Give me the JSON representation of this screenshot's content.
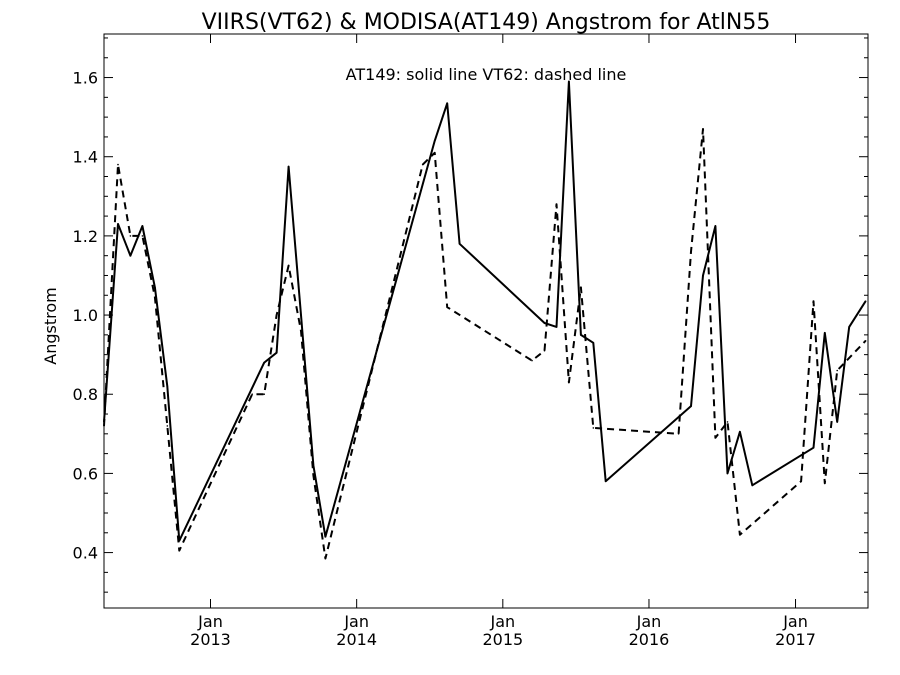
{
  "chart_data": {
    "type": "line",
    "title": "VIIRS(VT62) & MODISA(AT149)  Angstrom for AtlN55",
    "annotation": "AT149: solid line    VT62: dashed line",
    "xlabel": "",
    "ylabel": "Angstrom",
    "xlim": [
      "2012-04-10",
      "2017-07-01"
    ],
    "ylim": [
      0.26,
      1.71
    ],
    "yticks": [
      0.4,
      0.6,
      0.8,
      1.0,
      1.2,
      1.4,
      1.6
    ],
    "ytick_labels": [
      "0.4",
      "0.6",
      "0.8",
      "1.0",
      "1.2",
      "1.4",
      "1.6"
    ],
    "xticks": [
      {
        "date": "2013-01-01",
        "line1": "Jan",
        "line2": "2013"
      },
      {
        "date": "2014-01-01",
        "line1": "Jan",
        "line2": "2014"
      },
      {
        "date": "2015-01-01",
        "line1": "Jan",
        "line2": "2015"
      },
      {
        "date": "2016-01-01",
        "line1": "Jan",
        "line2": "2016"
      },
      {
        "date": "2017-01-01",
        "line1": "Jan",
        "line2": "2017"
      }
    ],
    "grid": false,
    "series": [
      {
        "name": "AT149",
        "style": "solid",
        "points": [
          [
            "2012-04-10",
            0.73
          ],
          [
            "2012-05-15",
            1.23
          ],
          [
            "2012-06-15",
            1.15
          ],
          [
            "2012-07-15",
            1.225
          ],
          [
            "2012-08-15",
            1.07
          ],
          [
            "2012-09-15",
            0.82
          ],
          [
            "2012-10-15",
            0.43
          ],
          [
            "2013-05-15",
            0.88
          ],
          [
            "2013-06-15",
            0.905
          ],
          [
            "2013-07-15",
            1.375
          ],
          [
            "2013-08-15",
            1.0
          ],
          [
            "2013-09-15",
            0.62
          ],
          [
            "2013-10-15",
            0.44
          ],
          [
            "2014-07-15",
            1.44
          ],
          [
            "2014-08-15",
            1.535
          ],
          [
            "2014-09-15",
            1.18
          ],
          [
            "2015-04-15",
            0.98
          ],
          [
            "2015-05-15",
            0.97
          ],
          [
            "2015-06-15",
            1.59
          ],
          [
            "2015-07-15",
            0.95
          ],
          [
            "2015-08-15",
            0.93
          ],
          [
            "2015-09-15",
            0.58
          ],
          [
            "2016-04-15",
            0.77
          ],
          [
            "2016-05-15",
            1.1
          ],
          [
            "2016-06-15",
            1.225
          ],
          [
            "2016-07-15",
            0.6
          ],
          [
            "2016-08-15",
            0.705
          ],
          [
            "2016-09-15",
            0.57
          ],
          [
            "2017-02-15",
            0.665
          ],
          [
            "2017-03-15",
            0.955
          ],
          [
            "2017-04-15",
            0.73
          ],
          [
            "2017-05-15",
            0.97
          ],
          [
            "2017-06-25",
            1.035
          ]
        ]
      },
      {
        "name": "VT62",
        "style": "dashed",
        "points": [
          [
            "2012-04-10",
            0.72
          ],
          [
            "2012-05-15",
            1.38
          ],
          [
            "2012-06-15",
            1.2
          ],
          [
            "2012-07-15",
            1.2
          ],
          [
            "2012-08-15",
            1.045
          ],
          [
            "2012-09-15",
            0.72
          ],
          [
            "2012-10-15",
            0.405
          ],
          [
            "2013-04-15",
            0.8
          ],
          [
            "2013-05-15",
            0.8
          ],
          [
            "2013-06-15",
            1.0
          ],
          [
            "2013-07-15",
            1.125
          ],
          [
            "2013-08-15",
            0.96
          ],
          [
            "2013-09-15",
            0.595
          ],
          [
            "2013-10-15",
            0.385
          ],
          [
            "2014-06-15",
            1.38
          ],
          [
            "2014-07-15",
            1.41
          ],
          [
            "2014-08-15",
            1.02
          ],
          [
            "2015-03-15",
            0.885
          ],
          [
            "2015-04-15",
            0.91
          ],
          [
            "2015-05-15",
            1.28
          ],
          [
            "2015-06-15",
            0.83
          ],
          [
            "2015-07-15",
            1.07
          ],
          [
            "2015-08-15",
            0.715
          ],
          [
            "2016-03-15",
            0.7
          ],
          [
            "2016-04-15",
            1.16
          ],
          [
            "2016-05-15",
            1.47
          ],
          [
            "2016-06-15",
            0.69
          ],
          [
            "2016-07-15",
            0.73
          ],
          [
            "2016-08-15",
            0.445
          ],
          [
            "2017-01-15",
            0.58
          ],
          [
            "2017-02-15",
            1.035
          ],
          [
            "2017-03-15",
            0.575
          ],
          [
            "2017-04-15",
            0.86
          ],
          [
            "2017-06-25",
            0.935
          ]
        ]
      }
    ]
  }
}
